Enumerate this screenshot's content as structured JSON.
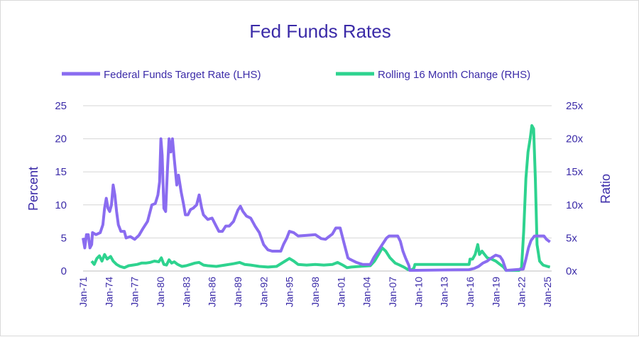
{
  "chart_data": {
    "type": "line",
    "title": "Fed Funds Rates",
    "ylabel": "Percent",
    "y2label": "Ratio",
    "ylim": [
      0,
      25
    ],
    "y2lim": [
      0,
      25
    ],
    "yticks": [
      "0",
      "5",
      "10",
      "15",
      "20",
      "25"
    ],
    "y2ticks": [
      "0x",
      "5x",
      "10x",
      "15x",
      "20x",
      "25x"
    ],
    "xticks": [
      "Jan-71",
      "Jan-74",
      "Jan-77",
      "Jan-80",
      "Jan-83",
      "Jan-86",
      "Jan-89",
      "Jan-92",
      "Jan-95",
      "Jan-98",
      "Jan-01",
      "Jan-04",
      "Jan-07",
      "Jan-10",
      "Jan-13",
      "Jan-16",
      "Jan-19",
      "Jan-22",
      "Jan-25"
    ],
    "xlim": [
      1971.0,
      2025.5
    ],
    "grid": true,
    "legend_position": "top",
    "series": [
      {
        "name": "Federal Funds Target Rate (LHS)",
        "axis": "left",
        "color": "#8a6cf0",
        "points": [
          [
            1971.0,
            5.0
          ],
          [
            1971.2,
            3.5
          ],
          [
            1971.4,
            5.5
          ],
          [
            1971.6,
            5.5
          ],
          [
            1971.8,
            3.5
          ],
          [
            1972.0,
            4.0
          ],
          [
            1972.1,
            5.8
          ],
          [
            1972.5,
            5.5
          ],
          [
            1973.0,
            5.8
          ],
          [
            1973.3,
            7.0
          ],
          [
            1973.5,
            9.5
          ],
          [
            1973.7,
            11.0
          ],
          [
            1973.9,
            9.5
          ],
          [
            1974.1,
            9.0
          ],
          [
            1974.3,
            10.0
          ],
          [
            1974.5,
            13.0
          ],
          [
            1974.7,
            11.5
          ],
          [
            1974.9,
            9.0
          ],
          [
            1975.1,
            7.0
          ],
          [
            1975.4,
            6.0
          ],
          [
            1975.8,
            6.0
          ],
          [
            1976.0,
            5.0
          ],
          [
            1976.5,
            5.2
          ],
          [
            1977.0,
            4.8
          ],
          [
            1977.5,
            5.4
          ],
          [
            1978.0,
            6.5
          ],
          [
            1978.5,
            7.5
          ],
          [
            1979.0,
            10.0
          ],
          [
            1979.4,
            10.2
          ],
          [
            1979.7,
            11.5
          ],
          [
            1979.9,
            13.5
          ],
          [
            1980.05,
            20.0
          ],
          [
            1980.2,
            17.5
          ],
          [
            1980.4,
            9.5
          ],
          [
            1980.6,
            9.0
          ],
          [
            1980.8,
            15.0
          ],
          [
            1981.0,
            20.0
          ],
          [
            1981.2,
            18.0
          ],
          [
            1981.4,
            20.0
          ],
          [
            1981.6,
            17.0
          ],
          [
            1981.9,
            13.0
          ],
          [
            1982.1,
            14.5
          ],
          [
            1982.4,
            12.0
          ],
          [
            1982.7,
            10.0
          ],
          [
            1982.9,
            8.5
          ],
          [
            1983.2,
            8.5
          ],
          [
            1983.5,
            9.3
          ],
          [
            1983.8,
            9.5
          ],
          [
            1984.2,
            10.0
          ],
          [
            1984.5,
            11.5
          ],
          [
            1984.8,
            9.5
          ],
          [
            1985.0,
            8.5
          ],
          [
            1985.5,
            7.8
          ],
          [
            1986.0,
            8.0
          ],
          [
            1986.4,
            7.0
          ],
          [
            1986.8,
            6.0
          ],
          [
            1987.2,
            6.0
          ],
          [
            1987.6,
            6.8
          ],
          [
            1988.0,
            6.8
          ],
          [
            1988.5,
            7.5
          ],
          [
            1989.0,
            9.2
          ],
          [
            1989.3,
            9.8
          ],
          [
            1989.6,
            9.0
          ],
          [
            1990.0,
            8.3
          ],
          [
            1990.5,
            8.0
          ],
          [
            1991.0,
            6.8
          ],
          [
            1991.5,
            5.8
          ],
          [
            1992.0,
            4.0
          ],
          [
            1992.5,
            3.2
          ],
          [
            1993.0,
            3.0
          ],
          [
            1994.0,
            3.0
          ],
          [
            1994.3,
            4.0
          ],
          [
            1994.7,
            5.0
          ],
          [
            1995.0,
            6.0
          ],
          [
            1995.5,
            5.8
          ],
          [
            1996.0,
            5.3
          ],
          [
            1997.0,
            5.4
          ],
          [
            1998.0,
            5.5
          ],
          [
            1998.7,
            4.9
          ],
          [
            1999.2,
            4.8
          ],
          [
            1999.6,
            5.2
          ],
          [
            2000.0,
            5.6
          ],
          [
            2000.4,
            6.5
          ],
          [
            2000.9,
            6.5
          ],
          [
            2001.1,
            5.5
          ],
          [
            2001.4,
            4.0
          ],
          [
            2001.8,
            2.0
          ],
          [
            2002.0,
            1.8
          ],
          [
            2002.8,
            1.3
          ],
          [
            2003.5,
            1.0
          ],
          [
            2004.4,
            1.0
          ],
          [
            2004.8,
            2.0
          ],
          [
            2005.3,
            3.0
          ],
          [
            2005.8,
            4.0
          ],
          [
            2006.3,
            5.0
          ],
          [
            2006.6,
            5.3
          ],
          [
            2007.6,
            5.3
          ],
          [
            2007.9,
            4.5
          ],
          [
            2008.2,
            3.0
          ],
          [
            2008.5,
            2.0
          ],
          [
            2008.9,
            0.8
          ],
          [
            2009.0,
            0.1
          ],
          [
            2015.9,
            0.2
          ],
          [
            2016.5,
            0.4
          ],
          [
            2017.0,
            0.7
          ],
          [
            2017.5,
            1.2
          ],
          [
            2018.0,
            1.5
          ],
          [
            2018.5,
            2.0
          ],
          [
            2019.0,
            2.4
          ],
          [
            2019.5,
            2.2
          ],
          [
            2019.8,
            1.6
          ],
          [
            2020.2,
            0.1
          ],
          [
            2022.2,
            0.3
          ],
          [
            2022.5,
            1.8
          ],
          [
            2022.8,
            3.5
          ],
          [
            2023.1,
            4.6
          ],
          [
            2023.5,
            5.3
          ],
          [
            2024.6,
            5.3
          ],
          [
            2024.9,
            4.8
          ],
          [
            2025.3,
            4.4
          ]
        ]
      },
      {
        "name": "Rolling 16 Month Change (RHS)",
        "axis": "right",
        "color": "#2ed38f",
        "points": [
          [
            1972.0,
            1.5
          ],
          [
            1972.3,
            1.0
          ],
          [
            1972.6,
            1.9
          ],
          [
            1972.9,
            2.3
          ],
          [
            1973.2,
            1.5
          ],
          [
            1973.5,
            2.5
          ],
          [
            1973.8,
            1.8
          ],
          [
            1974.2,
            2.2
          ],
          [
            1974.5,
            1.5
          ],
          [
            1974.9,
            1.0
          ],
          [
            1975.3,
            0.7
          ],
          [
            1975.8,
            0.5
          ],
          [
            1976.3,
            0.8
          ],
          [
            1976.8,
            0.9
          ],
          [
            1977.3,
            1.0
          ],
          [
            1977.8,
            1.2
          ],
          [
            1978.3,
            1.2
          ],
          [
            1978.8,
            1.3
          ],
          [
            1979.3,
            1.5
          ],
          [
            1979.8,
            1.4
          ],
          [
            1980.1,
            2.0
          ],
          [
            1980.4,
            1.0
          ],
          [
            1980.7,
            0.9
          ],
          [
            1981.0,
            1.7
          ],
          [
            1981.3,
            1.2
          ],
          [
            1981.6,
            1.4
          ],
          [
            1982.0,
            1.0
          ],
          [
            1982.5,
            0.7
          ],
          [
            1983.0,
            0.8
          ],
          [
            1983.5,
            1.0
          ],
          [
            1984.0,
            1.2
          ],
          [
            1984.5,
            1.3
          ],
          [
            1985.0,
            0.9
          ],
          [
            1985.5,
            0.8
          ],
          [
            1986.5,
            0.7
          ],
          [
            1987.5,
            0.9
          ],
          [
            1988.5,
            1.1
          ],
          [
            1989.2,
            1.3
          ],
          [
            1989.8,
            1.0
          ],
          [
            1990.5,
            0.9
          ],
          [
            1991.5,
            0.7
          ],
          [
            1992.5,
            0.6
          ],
          [
            1993.5,
            0.7
          ],
          [
            1994.5,
            1.5
          ],
          [
            1995.0,
            1.9
          ],
          [
            1995.5,
            1.5
          ],
          [
            1996.0,
            1.0
          ],
          [
            1997.0,
            0.9
          ],
          [
            1998.0,
            1.0
          ],
          [
            1999.0,
            0.9
          ],
          [
            2000.0,
            1.0
          ],
          [
            2000.6,
            1.3
          ],
          [
            2001.2,
            0.9
          ],
          [
            2001.7,
            0.5
          ],
          [
            2002.2,
            0.6
          ],
          [
            2003.2,
            0.7
          ],
          [
            2004.4,
            0.8
          ],
          [
            2004.9,
            1.5
          ],
          [
            2005.4,
            2.6
          ],
          [
            2005.8,
            3.5
          ],
          [
            2006.2,
            3.0
          ],
          [
            2006.7,
            2.0
          ],
          [
            2007.3,
            1.2
          ],
          [
            2007.8,
            0.9
          ],
          [
            2008.3,
            0.6
          ],
          [
            2008.8,
            0.2
          ],
          [
            2009.3,
            0.2
          ],
          [
            2009.5,
            0.5
          ],
          [
            2009.6,
            1.0
          ],
          [
            2015.9,
            1.0
          ],
          [
            2016.0,
            1.8
          ],
          [
            2016.3,
            1.8
          ],
          [
            2016.6,
            2.5
          ],
          [
            2016.9,
            4.0
          ],
          [
            2017.1,
            2.5
          ],
          [
            2017.4,
            3.0
          ],
          [
            2017.7,
            2.5
          ],
          [
            2018.0,
            2.0
          ],
          [
            2018.5,
            1.8
          ],
          [
            2019.0,
            1.5
          ],
          [
            2019.5,
            1.0
          ],
          [
            2019.9,
            0.6
          ],
          [
            2020.2,
            0.1
          ],
          [
            2021.7,
            0.1
          ],
          [
            2022.0,
            0.5
          ],
          [
            2022.25,
            6.0
          ],
          [
            2022.5,
            14.0
          ],
          [
            2022.75,
            18.0
          ],
          [
            2023.0,
            20.0
          ],
          [
            2023.2,
            22.0
          ],
          [
            2023.4,
            21.5
          ],
          [
            2023.6,
            14.0
          ],
          [
            2023.8,
            4.0
          ],
          [
            2024.1,
            1.5
          ],
          [
            2024.5,
            0.9
          ],
          [
            2025.0,
            0.7
          ],
          [
            2025.3,
            0.6
          ]
        ]
      }
    ]
  }
}
